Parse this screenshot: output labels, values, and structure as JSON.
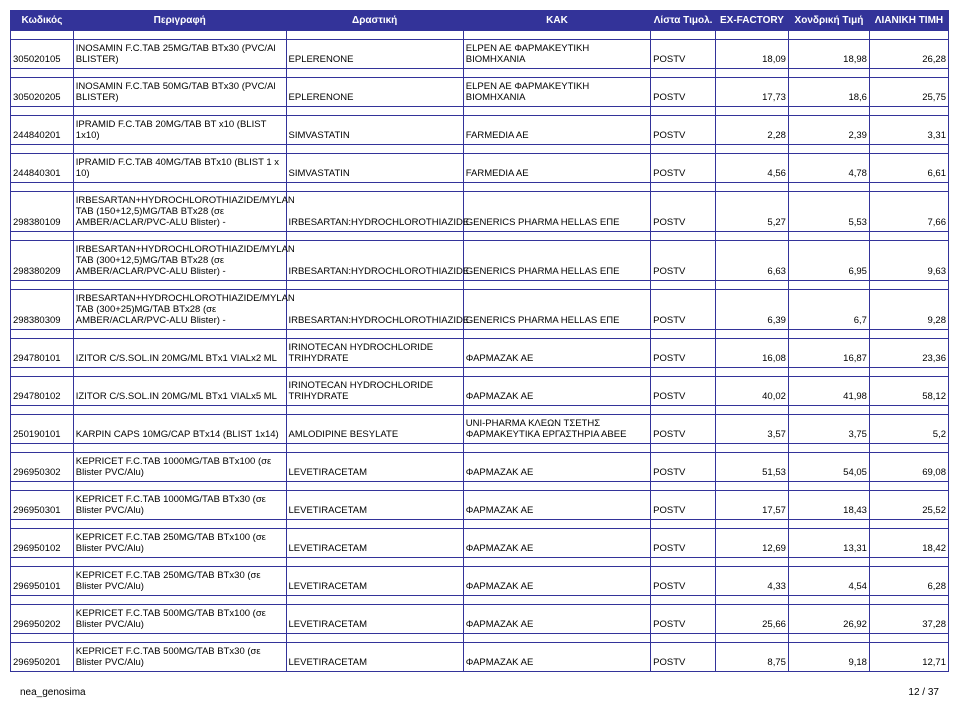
{
  "headers": [
    "Κωδικός",
    "Περιγραφή",
    "Δραστική",
    "ΚΑΚ",
    "Λίστα Τιμολ.",
    "EX-FACTORY",
    "Χονδρική Τιμή",
    "ΛΙΑΝΙΚΗ ΤΙΜΗ"
  ],
  "rows": [
    {
      "code": "305020105",
      "desc": "INOSAMIN F.C.TAB 25MG/TAB BTx30 (PVC/Al BLISTER)",
      "active": "EPLERENONE",
      "kak": "ELPEN AE ΦΑΡΜΑΚΕΥΤΙΚΗ ΒΙΟΜΗΧΑΝΙΑ",
      "list": "POSTV",
      "exf": "18,09",
      "wh": "18,98",
      "ret": "26,28"
    },
    {
      "code": "305020205",
      "desc": "INOSAMIN F.C.TAB 50MG/TAB BTx30 (PVC/Al BLISTER)",
      "active": "EPLERENONE",
      "kak": "ELPEN AE ΦΑΡΜΑΚΕΥΤΙΚΗ ΒΙΟΜΗΧΑΝΙΑ",
      "list": "POSTV",
      "exf": "17,73",
      "wh": "18,6",
      "ret": "25,75"
    },
    {
      "code": "244840201",
      "desc": "IPRAMID F.C.TAB 20MG/TAB BT x10 (BLIST 1x10)",
      "active": "SIMVASTATIN",
      "kak": "FARMEDIA AE",
      "list": "POSTV",
      "exf": "2,28",
      "wh": "2,39",
      "ret": "3,31"
    },
    {
      "code": "244840301",
      "desc": "IPRAMID F.C.TAB 40MG/TAB BTx10 (BLIST 1 x 10)",
      "active": "SIMVASTATIN",
      "kak": "FARMEDIA AE",
      "list": "POSTV",
      "exf": "4,56",
      "wh": "4,78",
      "ret": "6,61"
    },
    {
      "code": "298380109",
      "desc": "IRBESARTAN+HYDROCHLOROTHIAZIDE/MYLAN TAB (150+12,5)MG/TAB BTx28 (σε AMBER/ACLAR/PVC-ALU Blister)  -",
      "active": "IRBESARTAN:HYDROCHLOROTHIAZIDE",
      "kak": "GENERICS PHARMA HELLAS ΕΠΕ",
      "list": "POSTV",
      "exf": "5,27",
      "wh": "5,53",
      "ret": "7,66"
    },
    {
      "code": "298380209",
      "desc": "IRBESARTAN+HYDROCHLOROTHIAZIDE/MYLAN TAB (300+12,5)MG/TAB BTx28 (σε AMBER/ACLAR/PVC-ALU Blister)  -",
      "active": "IRBESARTAN:HYDROCHLOROTHIAZIDE",
      "kak": "GENERICS PHARMA HELLAS ΕΠΕ",
      "list": "POSTV",
      "exf": "6,63",
      "wh": "6,95",
      "ret": "9,63"
    },
    {
      "code": "298380309",
      "desc": "IRBESARTAN+HYDROCHLOROTHIAZIDE/MYLAN TAB (300+25)MG/TAB BTx28 (σε AMBER/ACLAR/PVC-ALU Blister)  -",
      "active": "IRBESARTAN:HYDROCHLOROTHIAZIDE",
      "kak": "GENERICS PHARMA HELLAS ΕΠΕ",
      "list": "POSTV",
      "exf": "6,39",
      "wh": "6,7",
      "ret": "9,28"
    },
    {
      "code": "294780101",
      "desc": "IZITOR C/S.SOL.IN 20MG/ML BTx1 VIALx2 ML",
      "active": "IRINOTECAN HYDROCHLORIDE TRIHYDRATE",
      "kak": "ΦΑΡΜΑΖΑΚ ΑΕ",
      "list": "POSTV",
      "exf": "16,08",
      "wh": "16,87",
      "ret": "23,36"
    },
    {
      "code": "294780102",
      "desc": "IZITOR C/S.SOL.IN 20MG/ML BTx1 VIALx5 ML",
      "active": "IRINOTECAN HYDROCHLORIDE TRIHYDRATE",
      "kak": "ΦΑΡΜΑΖΑΚ ΑΕ",
      "list": "POSTV",
      "exf": "40,02",
      "wh": "41,98",
      "ret": "58,12"
    },
    {
      "code": "250190101",
      "desc": "KARPIN CAPS 10MG/CAP BTx14 (BLIST 1x14)",
      "active": "AMLODIPINE BESYLATE",
      "kak": "UNI-PHARMA ΚΛΕΩΝ ΤΣΕΤΗΣ ΦΑΡΜΑΚΕΥΤΙΚΑ ΕΡΓΑΣΤΗΡΙΑ ΑΒΕΕ",
      "list": "POSTV",
      "exf": "3,57",
      "wh": "3,75",
      "ret": "5,2"
    },
    {
      "code": "296950302",
      "desc": "KEPRICET F.C.TAB 1000MG/TAB BTx100 (σε Blister PVC/Alu)",
      "active": "LEVETIRACETAM",
      "kak": "ΦΑΡΜΑΖΑΚ ΑΕ",
      "list": "POSTV",
      "exf": "51,53",
      "wh": "54,05",
      "ret": "69,08"
    },
    {
      "code": "296950301",
      "desc": "KEPRICET F.C.TAB 1000MG/TAB BTx30 (σε Blister PVC/Alu)",
      "active": "LEVETIRACETAM",
      "kak": "ΦΑΡΜΑΖΑΚ ΑΕ",
      "list": "POSTV",
      "exf": "17,57",
      "wh": "18,43",
      "ret": "25,52"
    },
    {
      "code": "296950102",
      "desc": "KEPRICET F.C.TAB 250MG/TAB BTx100 (σε Blister PVC/Alu)",
      "active": "LEVETIRACETAM",
      "kak": "ΦΑΡΜΑΖΑΚ ΑΕ",
      "list": "POSTV",
      "exf": "12,69",
      "wh": "13,31",
      "ret": "18,42"
    },
    {
      "code": "296950101",
      "desc": "KEPRICET F.C.TAB 250MG/TAB BTx30 (σε Blister PVC/Alu)",
      "active": "LEVETIRACETAM",
      "kak": "ΦΑΡΜΑΖΑΚ ΑΕ",
      "list": "POSTV",
      "exf": "4,33",
      "wh": "4,54",
      "ret": "6,28"
    },
    {
      "code": "296950202",
      "desc": "KEPRICET F.C.TAB 500MG/TAB BTx100 (σε Blister PVC/Alu)",
      "active": "LEVETIRACETAM",
      "kak": "ΦΑΡΜΑΖΑΚ ΑΕ",
      "list": "POSTV",
      "exf": "25,66",
      "wh": "26,92",
      "ret": "37,28"
    },
    {
      "code": "296950201",
      "desc": "KEPRICET F.C.TAB 500MG/TAB BTx30 (σε Blister PVC/Alu)",
      "active": "LEVETIRACETAM",
      "kak": "ΦΑΡΜΑΖΑΚ ΑΕ",
      "list": "POSTV",
      "exf": "8,75",
      "wh": "9,18",
      "ret": "12,71"
    }
  ],
  "footer_left": "nea_genosima",
  "footer_right": "12 / 37",
  "style": {
    "header_bg": "#333399",
    "header_fg": "#ffffff",
    "border_color": "#333399",
    "font_family": "Arial, sans-serif"
  }
}
